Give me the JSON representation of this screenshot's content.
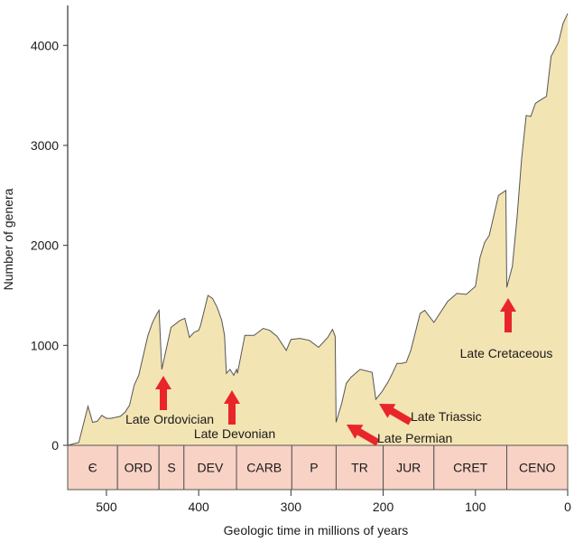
{
  "chart_data": {
    "type": "area",
    "xlabel": "Geologic time in millions of years",
    "ylabel": "Number of genera",
    "xlim": [
      542,
      0
    ],
    "ylim": [
      0,
      4400
    ],
    "x_ticks": [
      500,
      400,
      300,
      200,
      100,
      0
    ],
    "y_ticks": [
      0,
      1000,
      2000,
      3000,
      4000
    ],
    "grid": false,
    "fill_color": "#f3e4b4",
    "line_color": "#555555",
    "arrow_color": "#e8262a",
    "period_color": "#f8d2c4",
    "series": [
      {
        "x": [
          542,
          530,
          520,
          515,
          510,
          505,
          500,
          495,
          485,
          480,
          475,
          470,
          465,
          460,
          455,
          450,
          445,
          443,
          443,
          440,
          430,
          420,
          415,
          410,
          405,
          400,
          398,
          390,
          385,
          380,
          375,
          372,
          370,
          366,
          362,
          359,
          358,
          350,
          340,
          330,
          323,
          315,
          305,
          300,
          290,
          280,
          270,
          260,
          255,
          252,
          251,
          245,
          240,
          235,
          225,
          212,
          208,
          201,
          195,
          190,
          185,
          180,
          175,
          170,
          160,
          155,
          145,
          140,
          130,
          120,
          110,
          100,
          95,
          90,
          85,
          75,
          67,
          66,
          60,
          55,
          50,
          45,
          40,
          35,
          30,
          23,
          18,
          10,
          5,
          0
        ],
        "y": [
          0,
          30,
          390,
          230,
          240,
          300,
          270,
          270,
          290,
          330,
          400,
          600,
          700,
          900,
          1100,
          1230,
          1320,
          1350,
          1360,
          760,
          1180,
          1250,
          1270,
          1080,
          1130,
          1150,
          1200,
          1500,
          1470,
          1380,
          1250,
          1100,
          720,
          760,
          700,
          760,
          720,
          1100,
          1100,
          1170,
          1150,
          1090,
          950,
          1060,
          1070,
          1050,
          980,
          1080,
          1160,
          1090,
          230,
          420,
          620,
          680,
          760,
          730,
          460,
          540,
          630,
          720,
          820,
          820,
          830,
          950,
          1320,
          1350,
          1230,
          1300,
          1440,
          1520,
          1510,
          1590,
          1880,
          2030,
          2100,
          2500,
          2550,
          1580,
          1790,
          2270,
          2860,
          3300,
          3290,
          3420,
          3450,
          3490,
          3890,
          4030,
          4220,
          4320
        ]
      }
    ],
    "annotations": [
      {
        "label": "Late Ordovician",
        "x": 443
      },
      {
        "label": "Late Devonian",
        "x": 372
      },
      {
        "label": "Late Permian",
        "x": 251
      },
      {
        "label": "Late Triassic",
        "x": 201
      },
      {
        "label": "Late Cretaceous",
        "x": 66
      }
    ],
    "periods": [
      {
        "label": "Є",
        "start": 542,
        "end": 488
      },
      {
        "label": "ORD",
        "start": 488,
        "end": 443
      },
      {
        "label": "S",
        "start": 443,
        "end": 416
      },
      {
        "label": "DEV",
        "start": 416,
        "end": 359
      },
      {
        "label": "CARB",
        "start": 359,
        "end": 299
      },
      {
        "label": "P",
        "start": 299,
        "end": 251
      },
      {
        "label": "TR",
        "start": 251,
        "end": 200
      },
      {
        "label": "JUR",
        "start": 200,
        "end": 145
      },
      {
        "label": "CRET",
        "start": 145,
        "end": 66
      },
      {
        "label": "CENO",
        "start": 66,
        "end": 0
      }
    ]
  }
}
